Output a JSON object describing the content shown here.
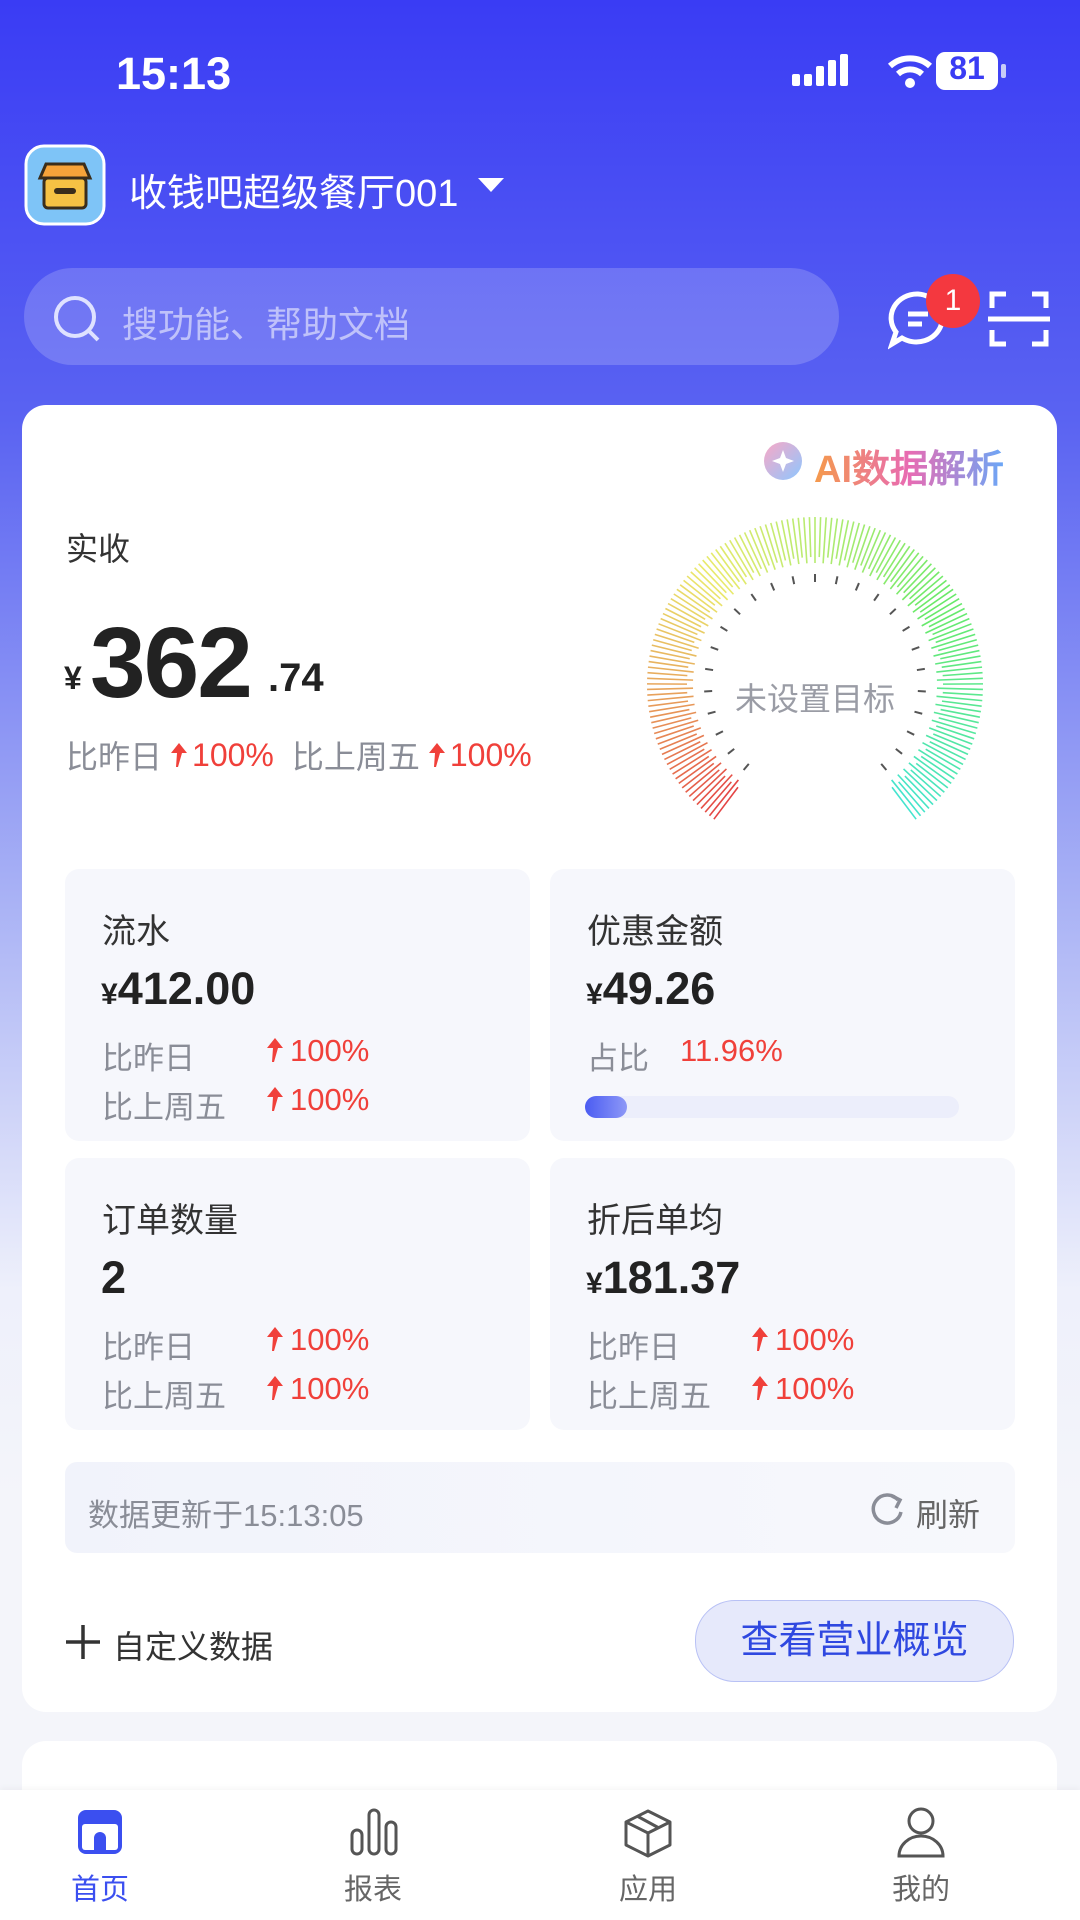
{
  "status": {
    "time": "15:13",
    "battery": "81"
  },
  "header": {
    "store_name": "收钱吧超级餐厅001",
    "badge": "1"
  },
  "search": {
    "placeholder": "搜功能、帮助文档"
  },
  "summary": {
    "ai_label": "AI数据解析",
    "title": "实收",
    "currency": "¥",
    "integer": "362",
    "decimal": ".74",
    "compare": [
      {
        "label": "比昨日",
        "value": "100%"
      },
      {
        "label": "比上周五",
        "value": "100%"
      }
    ]
  },
  "gauge": {
    "label": "未设置目标"
  },
  "tiles": [
    {
      "title": "流水",
      "currency": "¥",
      "value": "412.00",
      "rows": [
        {
          "label": "比昨日",
          "value": "100%"
        },
        {
          "label": "比上周五",
          "value": "100%"
        }
      ]
    },
    {
      "title": "优惠金额",
      "currency": "¥",
      "value": "49.26",
      "rows": [
        {
          "label": "占比",
          "value": "11.96%"
        }
      ]
    },
    {
      "title": "订单数量",
      "value": "2",
      "rows": [
        {
          "label": "比昨日",
          "value": "100%"
        },
        {
          "label": "比上周五",
          "value": "100%"
        }
      ]
    },
    {
      "title": "折后单均",
      "currency": "¥",
      "value": "181.37",
      "rows": [
        {
          "label": "比昨日",
          "value": "100%"
        },
        {
          "label": "比上周五",
          "value": "100%"
        }
      ]
    }
  ],
  "update": {
    "text": "数据更新于15:13:05",
    "refresh": "刷新"
  },
  "footer": {
    "custom": "自定义数据",
    "button": "查看营业概览"
  },
  "tabs": [
    "首页",
    "报表",
    "应用",
    "我的"
  ]
}
